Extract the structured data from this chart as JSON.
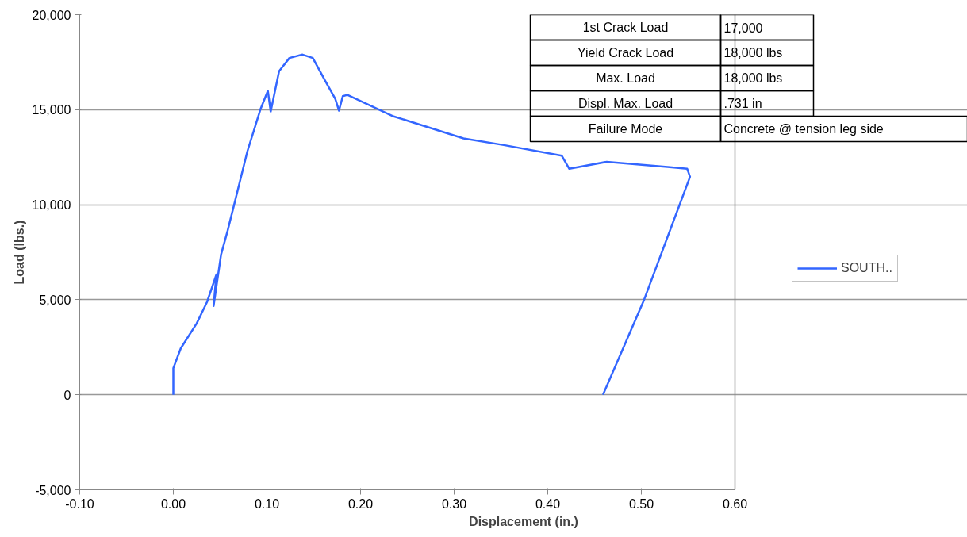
{
  "chart_data": {
    "type": "line",
    "xlabel": "Displacement (in.)",
    "ylabel": "Load (lbs.)",
    "xlim": [
      -0.1,
      0.6
    ],
    "xticks": [
      {
        "value": -0.1,
        "label": "-0.10"
      },
      {
        "value": 0,
        "label": "0.00"
      },
      {
        "value": 0.1,
        "label": "0.10"
      },
      {
        "value": 0.2,
        "label": "0.20"
      },
      {
        "value": 0.3,
        "label": "0.30"
      },
      {
        "value": 0.4,
        "label": "0.40"
      },
      {
        "value": 0.5,
        "label": "0.50"
      },
      {
        "value": 0.6,
        "label": "0.60"
      }
    ],
    "ylim": [
      -5000,
      20000
    ],
    "yticks": [
      {
        "value": -5000,
        "label": "-5,000"
      },
      {
        "value": 0,
        "label": "0"
      },
      {
        "value": 5000,
        "label": "5,000"
      },
      {
        "value": 10000,
        "label": "10,000"
      },
      {
        "value": 15000,
        "label": "15,000"
      },
      {
        "value": 20000,
        "label": "20,000"
      }
    ],
    "grid": "y",
    "legend": "right",
    "marker": "none",
    "line_style": "solid",
    "series": [
      {
        "name": "SOUTH..",
        "color": "#3366ff",
        "x": [
          0,
          0.0,
          0.008,
          0.025,
          0.036,
          0.046,
          0.043,
          0.051,
          0.058,
          0.065,
          0.079,
          0.093,
          0.101,
          0.104,
          0.113,
          0.124,
          0.138,
          0.149,
          0.162,
          0.173,
          0.177,
          0.181,
          0.186,
          0.234,
          0.31,
          0.353,
          0.415,
          0.423,
          0.463,
          0.528,
          0.549,
          0.552,
          0.503,
          0.459
        ],
        "values": [
          0,
          1400,
          2450,
          3760,
          4880,
          6330,
          4670,
          7380,
          8630,
          10010,
          12790,
          15010,
          15990,
          14900,
          17030,
          17720,
          17900,
          17720,
          16540,
          15570,
          14950,
          15710,
          15780,
          14670,
          13490,
          13140,
          12580,
          11890,
          12260,
          11990,
          11890,
          11470,
          5010,
          0
        ]
      }
    ],
    "annotations": [
      "1st Crack Load",
      "17,000",
      "Yield Crack Load",
      "18,000 lbs",
      "Max. Load",
      "18,000 lbs",
      "Displ. Max. Load",
      ".731 in",
      "Failure Mode",
      "Concrete @ tension leg side"
    ]
  }
}
